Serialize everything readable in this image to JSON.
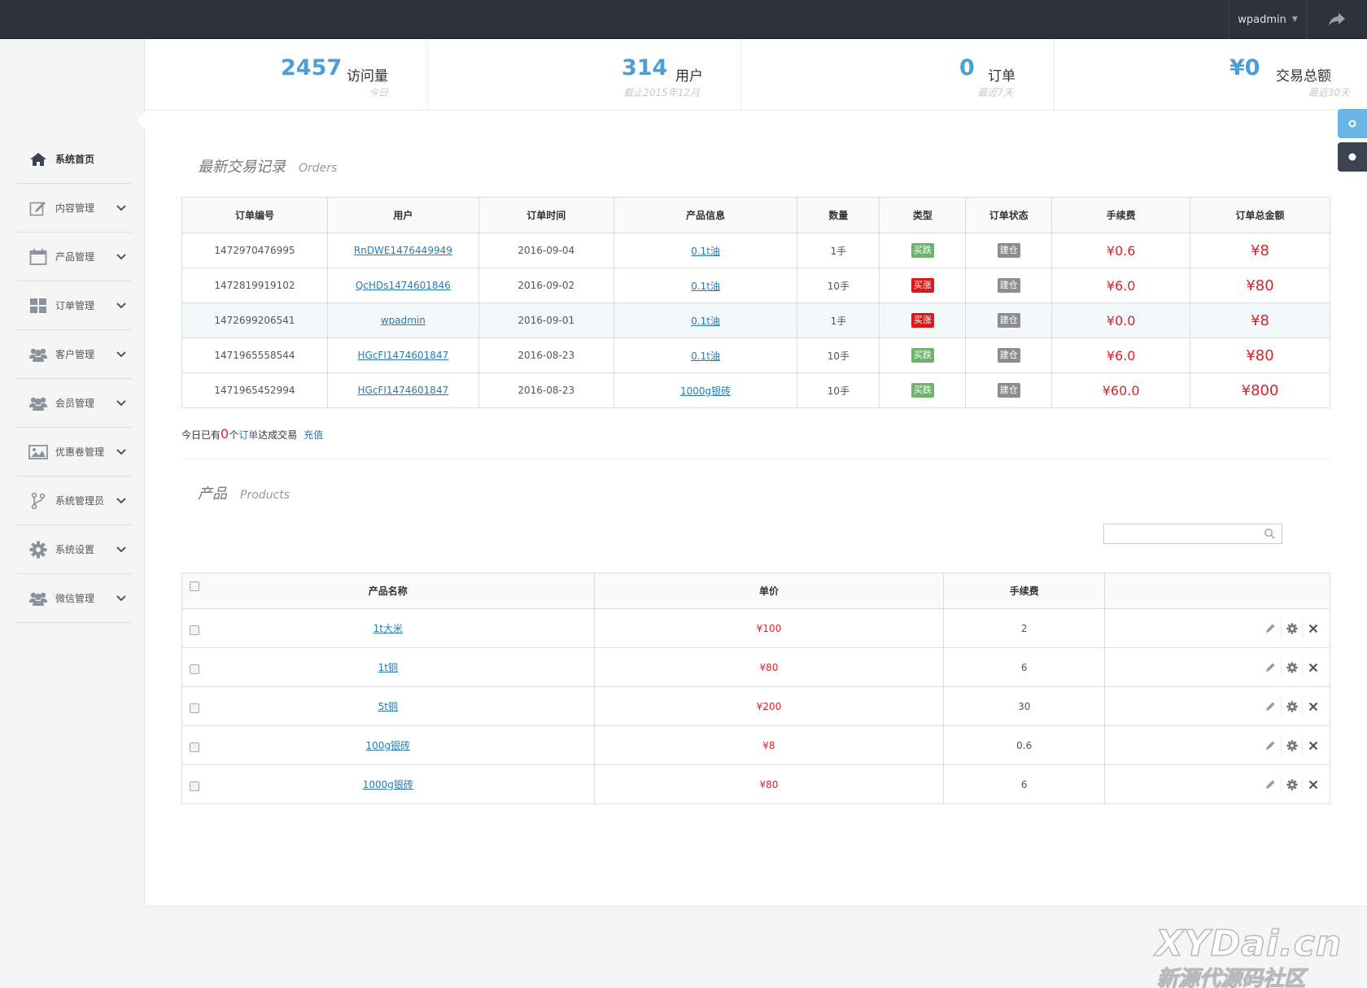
{
  "topbar": {
    "username": "wpadmin"
  },
  "sidebar": {
    "items": [
      {
        "label": "系统首页",
        "icon": "home-icon",
        "active": true
      },
      {
        "label": "内容管理",
        "icon": "edit-icon"
      },
      {
        "label": "产品管理",
        "icon": "calendar-icon"
      },
      {
        "label": "订单管理",
        "icon": "grid-icon"
      },
      {
        "label": "客户管理",
        "icon": "users-icon"
      },
      {
        "label": "会员管理",
        "icon": "users-icon"
      },
      {
        "label": "优惠卷管理",
        "icon": "picture-icon"
      },
      {
        "label": "系统管理员",
        "icon": "branch-icon"
      },
      {
        "label": "系统设置",
        "icon": "gear-icon"
      },
      {
        "label": "微信管理",
        "icon": "users-icon"
      }
    ]
  },
  "stats": [
    {
      "value": "2457",
      "label": "访问量",
      "sub": "今日"
    },
    {
      "value": "314",
      "label": "用户",
      "sub": "截止2015年12月"
    },
    {
      "value": "0",
      "label": "订单",
      "sub": "最近7天"
    },
    {
      "value": "¥0",
      "label": "交易总额",
      "sub": "最近30天"
    }
  ],
  "orders_section": {
    "title": "最新交易记录",
    "subtitle": "Orders"
  },
  "orders_table": {
    "headers": [
      "订单编号",
      "用户",
      "订单时间",
      "产品信息",
      "数量",
      "类型",
      "订单状态",
      "手续费",
      "订单总金额"
    ],
    "rows": [
      {
        "id": "1472970476995",
        "user": "RnDWE1476449949",
        "time": "2016-09-04",
        "product": "0.1t油",
        "qty": "1手",
        "type": "买跌",
        "type_color": "green",
        "status": "建仓",
        "fee": "¥0.6",
        "total": "¥8"
      },
      {
        "id": "1472819919102",
        "user": "QcHDs1474601846",
        "time": "2016-09-02",
        "product": "0.1t油",
        "qty": "10手",
        "type": "买涨",
        "type_color": "red",
        "status": "建仓",
        "fee": "¥6.0",
        "total": "¥80"
      },
      {
        "id": "1472699206541",
        "user": "wpadmin",
        "time": "2016-09-01",
        "product": "0.1t油",
        "qty": "1手",
        "type": "买涨",
        "type_color": "red",
        "status": "建仓",
        "fee": "¥0.0",
        "total": "¥8"
      },
      {
        "id": "1471965558544",
        "user": "HGcFI1474601847",
        "time": "2016-08-23",
        "product": "0.1t油",
        "qty": "10手",
        "type": "买跌",
        "type_color": "green",
        "status": "建仓",
        "fee": "¥6.0",
        "total": "¥80"
      },
      {
        "id": "1471965452994",
        "user": "HGcFI1474601847",
        "time": "2016-08-23",
        "product": "1000g银砖",
        "qty": "10手",
        "type": "买跌",
        "type_color": "green",
        "status": "建仓",
        "fee": "¥60.0",
        "total": "¥800"
      }
    ]
  },
  "footnote": {
    "prefix": "今日已有",
    "count": "0",
    "mid": "个",
    "link_word": "订单",
    "suffix": "达成交易",
    "recharge": "充值"
  },
  "products_section": {
    "title": "产品",
    "subtitle": "Products"
  },
  "search": {
    "placeholder": ""
  },
  "products_table": {
    "headers": [
      "产品名称",
      "单价",
      "手续费",
      ""
    ],
    "rows": [
      {
        "name": "1t大米",
        "price": "¥100",
        "fee": "2"
      },
      {
        "name": "1t铜",
        "price": "¥80",
        "fee": "6"
      },
      {
        "name": "5t铜",
        "price": "¥200",
        "fee": "30"
      },
      {
        "name": "100g银砖",
        "price": "¥8",
        "fee": "0.6"
      },
      {
        "name": "1000g银砖",
        "price": "¥80",
        "fee": "6"
      }
    ]
  },
  "watermark": {
    "line1": "XYDai.cn",
    "line2": "新源代源码社区"
  },
  "colors": {
    "accent": "#4a9fd8",
    "topbar": "#2d323b",
    "money": "#d8232a",
    "badge_green": "#6fb36f",
    "badge_red": "#d9181c",
    "badge_gray": "#8d8d8d"
  }
}
